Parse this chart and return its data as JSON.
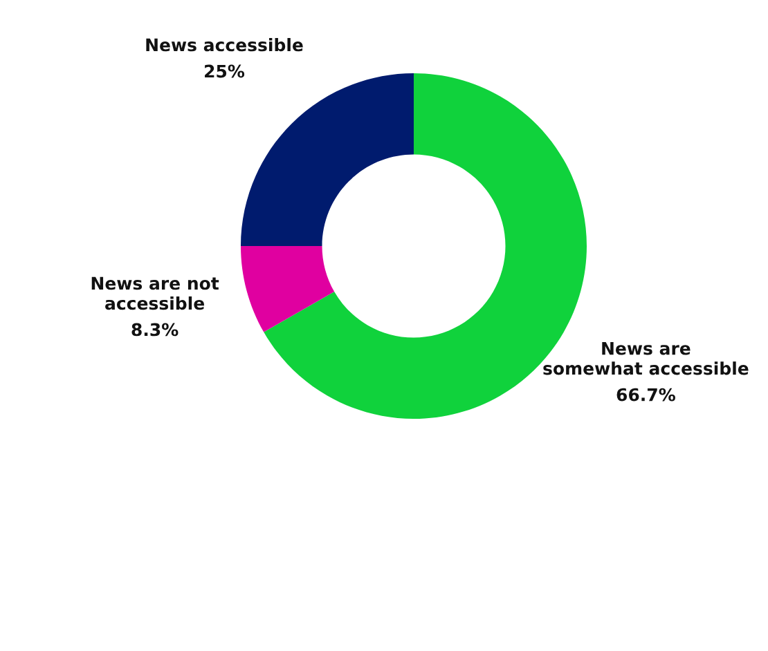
{
  "chart_data": {
    "type": "donut",
    "categories": [
      "News are\nsomewhat accessible",
      "News are not\naccessible",
      "News accessible"
    ],
    "values": [
      66.7,
      8.3,
      25
    ],
    "colors": [
      "#10d23c",
      "#e000a0",
      "#001b6e"
    ],
    "value_labels": [
      "66.7%",
      "8.3%",
      "25%"
    ]
  }
}
